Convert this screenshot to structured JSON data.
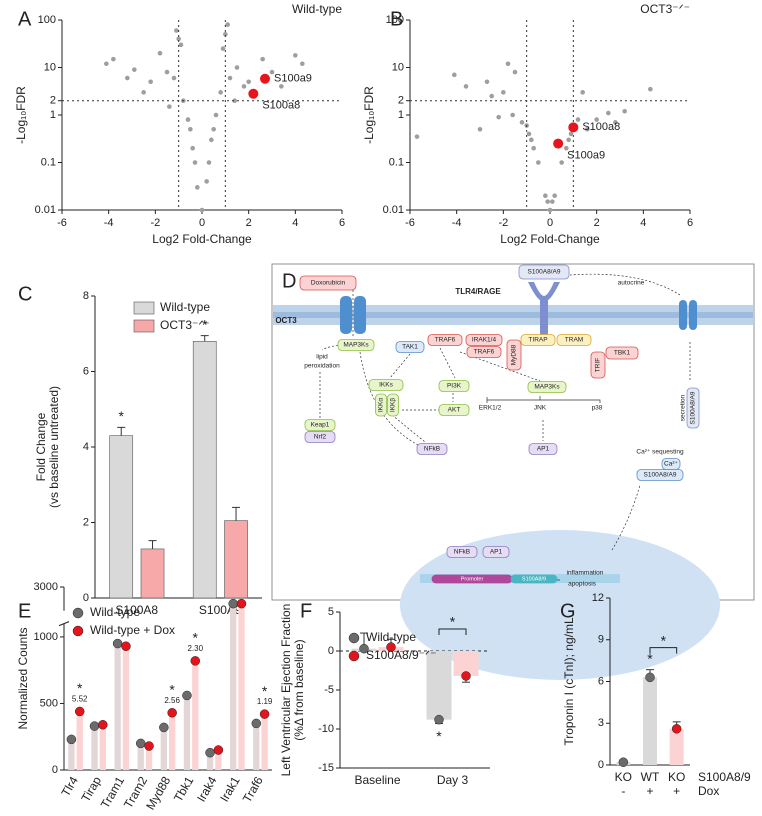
{
  "panels": [
    "A",
    "B",
    "C",
    "D",
    "E",
    "F",
    "G"
  ],
  "chart_data": [
    {
      "type": "scatter",
      "title": "Wild-type",
      "xlabel": "Log2 Fold-Change",
      "ylabel": "-Log₁₀FDR",
      "xlim": [
        -6,
        6
      ],
      "xticks": [
        -6,
        -4,
        -2,
        0,
        2,
        4,
        6
      ],
      "ylim": [
        0.01,
        100
      ],
      "yticks": [
        0.01,
        0.1,
        1,
        2,
        10,
        100
      ],
      "log_y": true,
      "threshold_x": [
        -1,
        1
      ],
      "threshold_y": 2,
      "points": {
        "color": "#9e9e9e",
        "x": [
          -4.1,
          -3.2,
          -2.9,
          -2.5,
          -2.2,
          -1.8,
          -1.5,
          -1.2,
          -1.0,
          -0.8,
          -0.6,
          -0.4,
          -0.2,
          0,
          0.2,
          0.4,
          0.6,
          0.8,
          1.0,
          1.2,
          1.5,
          1.8,
          2.0,
          2.3,
          2.6,
          3.0,
          3.4,
          4.0,
          4.3,
          -0.5,
          0.5,
          -1.4,
          1.4,
          -0.9,
          0.9,
          -3.8,
          1.1,
          -1.1,
          0.3,
          -0.3
        ],
        "y": [
          12,
          6,
          9,
          3,
          5,
          20,
          8,
          6,
          40,
          2,
          0.8,
          0.2,
          0.03,
          0.01,
          0.04,
          0.3,
          1,
          3,
          50,
          6,
          10,
          4,
          5,
          3,
          15,
          8,
          4,
          18,
          12,
          0.5,
          0.5,
          1.5,
          2,
          30,
          25,
          15,
          80,
          60,
          0.1,
          0.1
        ]
      },
      "highlights": [
        {
          "label": "S100a9",
          "x": 2.7,
          "y": 5.8,
          "color": "#e8141c"
        },
        {
          "label": "S100a8",
          "x": 2.2,
          "y": 2.8,
          "color": "#e8141c"
        }
      ]
    },
    {
      "type": "scatter",
      "title": "OCT3⁻ᐟ⁻",
      "xlabel": "Log2 Fold-Change",
      "ylabel": "-Log₁₀FDR",
      "xlim": [
        -6,
        6
      ],
      "xticks": [
        -6,
        -4,
        -2,
        0,
        2,
        4,
        6
      ],
      "ylim": [
        0.01,
        100
      ],
      "yticks": [
        0.01,
        0.1,
        1,
        2,
        10,
        100
      ],
      "log_y": true,
      "threshold_x": [
        -1,
        1
      ],
      "threshold_y": 2,
      "points": {
        "color": "#9e9e9e",
        "x": [
          -5.7,
          -4.1,
          -3.6,
          -2.7,
          -2.5,
          -2.0,
          -1.6,
          -1.2,
          -1.0,
          -0.8,
          -0.5,
          -0.2,
          0,
          0.2,
          0.5,
          0.8,
          1.0,
          1.2,
          1.6,
          2.0,
          2.5,
          3.2,
          4.3,
          -1.5,
          -1.8,
          -0.7,
          0.7,
          -3.0,
          -2.2,
          1.4,
          0.1,
          -0.1,
          0.9,
          -0.9,
          2.8
        ],
        "y": [
          0.35,
          7,
          4,
          5,
          2.5,
          3,
          1,
          0.7,
          0.6,
          0.3,
          0.1,
          0.02,
          0.01,
          0.02,
          0.1,
          0.3,
          0.6,
          0.8,
          0.5,
          0.8,
          1.1,
          1.2,
          3.5,
          8,
          12,
          0.2,
          0.2,
          0.5,
          0.9,
          3,
          0.015,
          0.015,
          0.4,
          0.4,
          0.7
        ]
      },
      "highlights": [
        {
          "label": "S100a8",
          "x": 1.0,
          "y": 0.55,
          "color": "#e8141c"
        },
        {
          "label": "S100a9",
          "x": 0.35,
          "y": 0.25,
          "color": "#e8141c"
        }
      ]
    },
    {
      "type": "bar",
      "ylabel": [
        "Fold Change",
        "(vs baseline untreated)"
      ],
      "categories": [
        "S100A8",
        "S100A9"
      ],
      "ylim": [
        0,
        8
      ],
      "yticks": [
        0,
        2,
        4,
        6,
        8
      ],
      "legend": "upper right",
      "series": [
        {
          "name": "Wild-type",
          "color": "#d9d9d9",
          "values": [
            4.3,
            6.8
          ],
          "errors": [
            0.22,
            0.15
          ]
        },
        {
          "name": "OCT3⁻ᐟ⁻",
          "color": "#f7a8a8",
          "values": [
            1.3,
            2.05
          ],
          "errors": [
            0.22,
            0.35
          ]
        }
      ],
      "stars": [
        {
          "series": 0,
          "index": 0,
          "label": "*"
        },
        {
          "series": 0,
          "index": 1,
          "label": "*"
        }
      ]
    },
    {
      "type": "bar",
      "ylabel": [
        "Normalized Counts"
      ],
      "categories": [
        "Tlr4",
        "Tirap",
        "Tram1",
        "Tram2",
        "Myd88",
        "Tbk1",
        "Irak4",
        "Irak1",
        "Traf6"
      ],
      "ylim": [
        0,
        3000
      ],
      "yticks": [
        0,
        500,
        1000,
        3000
      ],
      "ybreak": [
        1100,
        2500
      ],
      "legend": "upper left",
      "show_points": true,
      "rotate_labels": true,
      "series": [
        {
          "name": "Wild-type",
          "color": "#e3d6d6",
          "point_color": "#6b6b6b",
          "values": [
            230,
            330,
            950,
            200,
            320,
            560,
            130,
            2650,
            350
          ]
        },
        {
          "name": "Wild-type + Dox",
          "color": "#fcd3d3",
          "point_color": "#e3141b",
          "values": [
            440,
            340,
            930,
            180,
            430,
            820,
            150,
            2650,
            420
          ]
        }
      ],
      "stars": [
        {
          "series": 1,
          "index": 0,
          "label": "*",
          "note": "5.52"
        },
        {
          "series": 1,
          "index": 4,
          "label": "*",
          "note": "2.56"
        },
        {
          "series": 1,
          "index": 5,
          "label": "*",
          "note": "2.30"
        },
        {
          "series": 1,
          "index": 8,
          "label": "*",
          "note": "1.19"
        }
      ]
    },
    {
      "type": "bar",
      "ylabel": [
        "Left Ventricular Ejection Fraction",
        "(%Δ from baseline)"
      ],
      "categories": [
        "Baseline",
        "Day 3"
      ],
      "ylim": [
        -15,
        5
      ],
      "yticks": [
        -15,
        -10,
        -5,
        0,
        5
      ],
      "legend": "upper left",
      "show_points": true,
      "zero_line": true,
      "series": [
        {
          "name": "Wild-type",
          "color": "#d9d9d9",
          "point_color": "#6b6b6b",
          "values": [
            0.3,
            -8.8
          ],
          "errors": [
            2.0,
            0.5
          ]
        },
        {
          "name": "S100A8/9⁻ᐟ⁻",
          "color": "#fcd3d3",
          "point_color": "#e3141b",
          "values": [
            0.5,
            -3.2
          ],
          "errors": [
            1.0,
            0.8
          ]
        }
      ],
      "stars": [
        {
          "series": 0,
          "index": 1,
          "label": "*"
        }
      ],
      "bracket": {
        "from": [
          0,
          1
        ],
        "to": [
          1,
          1
        ],
        "label": "*"
      }
    },
    {
      "type": "bar",
      "ylabel": [
        "Troponin I (cTnI); ng/mL"
      ],
      "categories": [
        "KO",
        "WT",
        "KO"
      ],
      "categories2": [
        "-",
        "+",
        "+"
      ],
      "row_labels": [
        "S100A8/9",
        "Dox"
      ],
      "ylim": [
        0,
        12
      ],
      "yticks": [
        0,
        3,
        6,
        9,
        12
      ],
      "show_points": true,
      "values": [
        0.2,
        6.3,
        2.6
      ],
      "errors": [
        0.1,
        0.55,
        0.5
      ],
      "colors": [
        "#d9d9d9",
        "#d9d9d9",
        "#fcd3d3"
      ],
      "point_colors": [
        "#6b6b6b",
        "#6b6b6b",
        "#e3141b"
      ],
      "stars": [
        {
          "index": 1,
          "label": "*"
        }
      ],
      "bracket": {
        "from": 1,
        "to": 2,
        "label": "*"
      }
    }
  ],
  "diagram": {
    "nodes": [
      "OCT3",
      "Doxorubicin",
      "TLR4/RAGE",
      "S100A8/A9",
      "autocrine",
      "MAP3Ks",
      "lipid",
      "peroxidation",
      "TAK1",
      "TRAF6",
      "IRAK1/4",
      "TRAF6",
      "MyD88",
      "TIRAP",
      "TRAM",
      "TBK1",
      "TRIF",
      "IKKs",
      "IKKα",
      "IKKβ",
      "PI3K",
      "AKT",
      "MAP3Ks",
      "ERK1/2",
      "JNK",
      "p38",
      "Keap1",
      "Nrf2",
      "NFkB",
      "AP1",
      "secretion",
      "S100A8/A9",
      "Ca²⁺ sequesting",
      "Ca²⁺",
      "S100A8/A9",
      "NFkB",
      "AP1",
      "Promoter",
      "S100A8/9",
      "inflammation",
      "apoptosis"
    ]
  }
}
